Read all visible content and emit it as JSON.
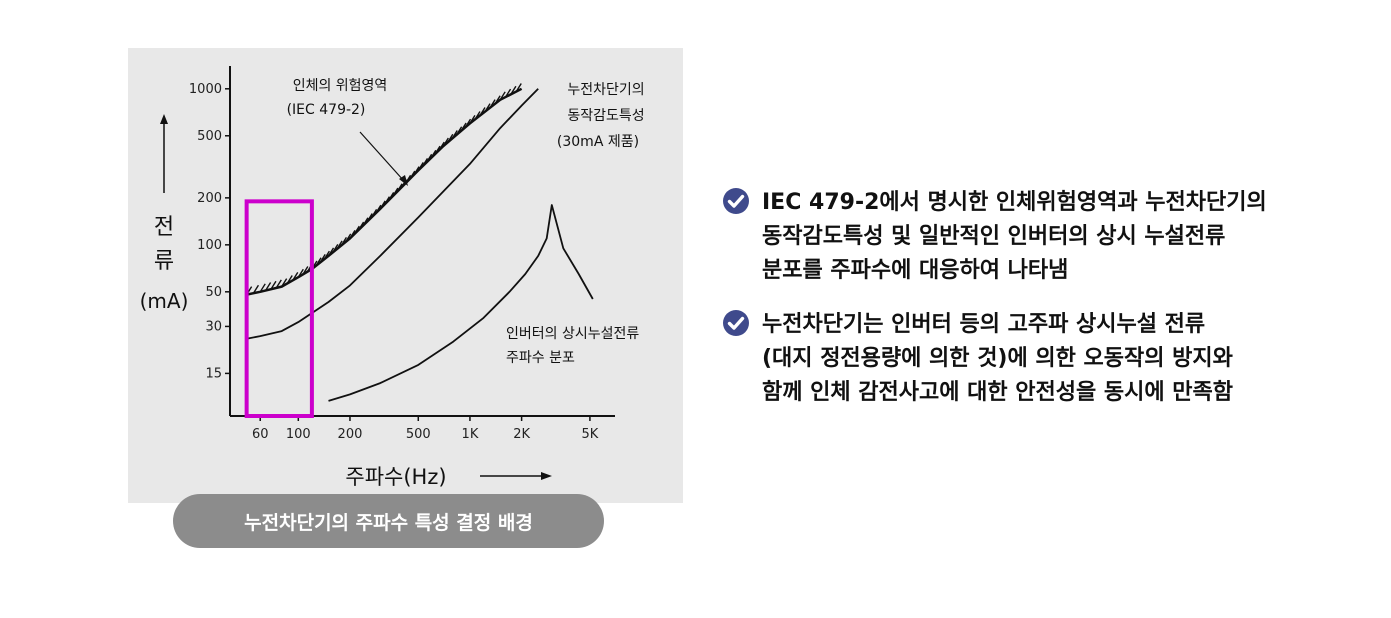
{
  "chart_data": {
    "type": "line",
    "xscale": "log",
    "yscale": "log",
    "xlabel": "주파수(Hz)",
    "ylabel_lines": [
      "전",
      "류",
      "(mA)"
    ],
    "x_ticks": [
      {
        "value": 60,
        "label": "60"
      },
      {
        "value": 100,
        "label": "100"
      },
      {
        "value": 200,
        "label": "200"
      },
      {
        "value": 500,
        "label": "500"
      },
      {
        "value": 1000,
        "label": "1K"
      },
      {
        "value": 2000,
        "label": "2K"
      },
      {
        "value": 5000,
        "label": "5K"
      }
    ],
    "y_ticks": [
      {
        "value": 15,
        "label": "15"
      },
      {
        "value": 30,
        "label": "30"
      },
      {
        "value": 50,
        "label": "50"
      },
      {
        "value": 100,
        "label": "100"
      },
      {
        "value": 200,
        "label": "200"
      },
      {
        "value": 500,
        "label": "500"
      },
      {
        "value": 1000,
        "label": "1000"
      }
    ],
    "xlim": [
      40,
      7000
    ],
    "ylim": [
      8,
      1400
    ],
    "series": [
      {
        "name": "인체의 위험영역",
        "style": "hatched",
        "x": [
          50,
          60,
          80,
          100,
          120,
          150,
          200,
          300,
          500,
          700,
          1000,
          1500,
          2000
        ],
        "y": [
          48,
          50,
          54,
          62,
          70,
          85,
          110,
          170,
          300,
          430,
          600,
          850,
          1000
        ]
      },
      {
        "name": "누전차단기의 동작감도특성 (30mA 제품)",
        "style": "solid",
        "x": [
          50,
          60,
          80,
          100,
          150,
          200,
          300,
          500,
          1000,
          1500,
          2000,
          2500
        ],
        "y": [
          25,
          26,
          28,
          32,
          43,
          55,
          85,
          150,
          330,
          560,
          780,
          1000
        ]
      },
      {
        "name": "인버터의 상시누설전류 주파수 분포",
        "style": "solid",
        "x": [
          150,
          200,
          300,
          500,
          800,
          1200,
          1700,
          2100,
          2500,
          2800,
          3000,
          3500,
          4300,
          5200
        ],
        "y": [
          10,
          11,
          13,
          17,
          24,
          34,
          50,
          65,
          85,
          110,
          180,
          95,
          65,
          45
        ]
      }
    ],
    "annotations": {
      "danger_zone": {
        "line1": "인체의 위험영역",
        "line2": "(IEC 479-2)"
      },
      "breaker": {
        "line1": "누전차단기의",
        "line2": "동작감도특성",
        "line3": "(30mA 제품)"
      },
      "inverter": {
        "line1": "인버터의 상시누설전류",
        "line2": "주파수 분포"
      }
    },
    "highlight": {
      "x_range": [
        50,
        120
      ],
      "y_range": [
        8,
        190
      ],
      "color": "#cc00cc"
    },
    "grid": false,
    "legend": "none"
  },
  "caption": "누전차단기의 주파수 특성 결정 배경",
  "bullets": [
    {
      "icon": "check-circle-icon",
      "lines": [
        "IEC 479-2에서 명시한 인체위험영역과 누전차단기의",
        "동작감도특성 및 일반적인 인버터의 상시 누설전류",
        "분포를 주파수에 대응하여 나타냄"
      ]
    },
    {
      "icon": "check-circle-icon",
      "lines": [
        "누전차단기는 인버터 등의 고주파 상시누설 전류",
        "(대지 정전용량에 의한 것)에 의한 오동작의 방지와",
        "함께 인체 감전사고에 대한 안전성을 동시에 만족함"
      ]
    }
  ],
  "colors": {
    "accent": "#3f4a8c",
    "highlight": "#cc00cc",
    "caption_bg": "#8c8c8c",
    "panel_bg": "#e8e8e8"
  }
}
